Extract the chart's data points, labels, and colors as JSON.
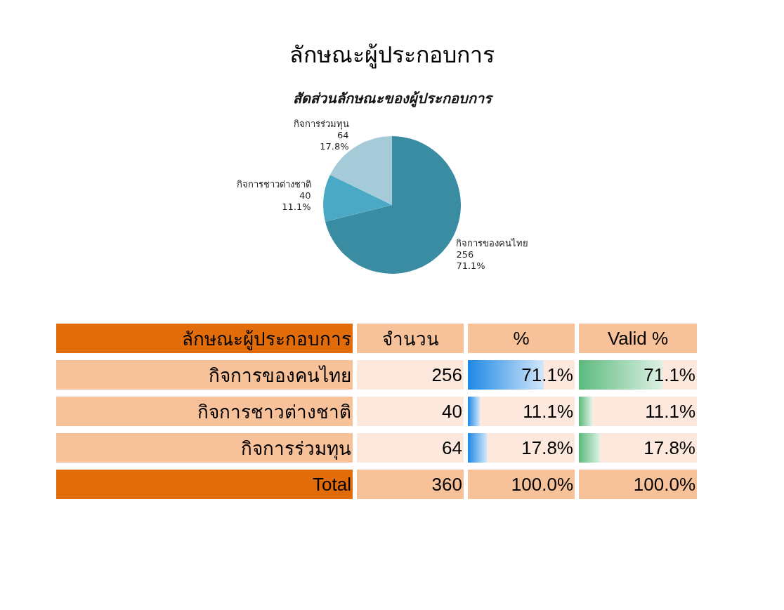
{
  "chart_data": [
    {
      "type": "pie",
      "title": "ลักษณะผู้ประกอบการ",
      "subtitle": "สัดส่วนลักษณะของผู้ประกอบการ",
      "categories": [
        "กิจการของคนไทย",
        "กิจการชาวต่างชาติ",
        "กิจการร่วมทุน"
      ],
      "values": [
        256,
        40,
        64
      ],
      "colors": [
        "#3a8ca2",
        "#4aaac6",
        "#a6cbd8"
      ],
      "value_labels": [
        "256\n71.1%",
        "40\n11.1%",
        "64\n17.8%"
      ],
      "data_labels": true,
      "legend": false
    },
    {
      "type": "other",
      "data_labels": true,
      "legend_title": "ลักษณะผู้ประกอบการ",
      "categories": [
        "กิจการของคนไทย",
        "กิจการชาวต่างชาติ",
        "กิจการร่วมทุน",
        "Total"
      ],
      "series": [
        {
          "name": "จำนวน",
          "colors": [
            "#fce8dc",
            "#fce8dc",
            "#fce8dc",
            "#f7c199"
          ],
          "values": [
            256,
            40,
            64,
            360
          ]
        },
        {
          "name": "%",
          "colors": [
            "#1e88e5",
            "#1e88e5",
            "#1e88e5",
            "#f7c199"
          ],
          "values": [
            71.1,
            11.1,
            17.8,
            100.0
          ],
          "value_labels": [
            "71.1%",
            "11.1%",
            "17.8%",
            "100.0%"
          ]
        },
        {
          "name": "Valid %",
          "colors": [
            "#5cba7d",
            "#5cba7d",
            "#5cba7d",
            "#f7c199"
          ],
          "values": [
            71.1,
            11.1,
            17.8,
            100.0
          ],
          "value_labels": [
            "71.1%",
            "11.1%",
            "17.8%",
            "100.0%"
          ]
        }
      ]
    }
  ]
}
